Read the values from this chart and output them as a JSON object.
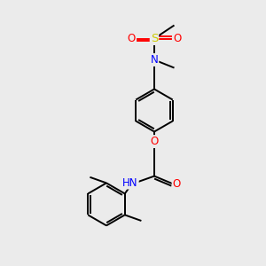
{
  "background_color": "#ebebeb",
  "bond_color": "#000000",
  "atom_colors": {
    "O": "#ff0000",
    "N": "#0000ff",
    "S": "#cccc00",
    "H": "#606060",
    "C": "#000000"
  },
  "bond_width": 1.4,
  "font_size": 8.5
}
